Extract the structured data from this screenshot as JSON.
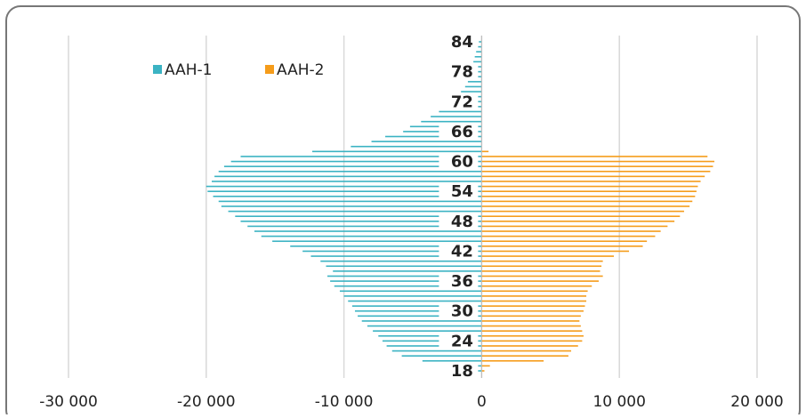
{
  "chart_data": {
    "type": "pyramid",
    "categories": [
      "18",
      null,
      null,
      null,
      null,
      null,
      "24",
      null,
      null,
      null,
      null,
      null,
      "30",
      null,
      null,
      null,
      null,
      null,
      "36",
      null,
      null,
      null,
      null,
      null,
      "42",
      null,
      null,
      null,
      null,
      null,
      "48",
      null,
      null,
      null,
      null,
      null,
      "54",
      null,
      null,
      null,
      null,
      null,
      "60",
      null,
      null,
      null,
      null,
      null,
      "66",
      null,
      null,
      null,
      null,
      null,
      "72",
      null,
      null,
      null,
      null,
      null,
      "78",
      null,
      null,
      null,
      null,
      null,
      "84"
    ],
    "series": [
      {
        "name": "AAH-1",
        "color": "#3bb3c3",
        "values": [
          -500,
          -2500,
          -4300,
          -5800,
          -6500,
          -6900,
          -7200,
          -7500,
          -7900,
          -8300,
          -8700,
          -9000,
          -9200,
          -9400,
          -9700,
          -10000,
          -10300,
          -10700,
          -11000,
          -11200,
          -10800,
          -11300,
          -11700,
          -12400,
          -13000,
          -13900,
          -15200,
          -16000,
          -16500,
          -17000,
          -17500,
          -17900,
          -18400,
          -18900,
          -19100,
          -19500,
          -19900,
          -20000,
          -19600,
          -19400,
          -19100,
          -18700,
          -18200,
          -17500,
          -12300,
          -9500,
          -8000,
          -7000,
          -5700,
          -5200,
          -4400,
          -3700,
          -3100,
          -2600,
          -2100,
          -1800,
          -1500,
          -1200,
          -1000,
          -900,
          -800,
          -700,
          -600,
          -500,
          -400,
          -300,
          -200
        ]
      },
      {
        "name": "AAH-2",
        "color": "#f59c1a",
        "values": [
          200,
          600,
          4500,
          6300,
          6500,
          7000,
          7300,
          7400,
          7300,
          7200,
          7100,
          7200,
          7400,
          7500,
          7600,
          7600,
          7700,
          8000,
          8500,
          8800,
          8600,
          8700,
          8800,
          9600,
          10700,
          11700,
          12000,
          12600,
          13000,
          13500,
          14000,
          14400,
          14700,
          15100,
          15300,
          15500,
          15600,
          15700,
          15900,
          16200,
          16600,
          16800,
          16900,
          16400,
          500,
          0,
          0,
          0,
          0,
          0,
          0,
          0,
          0,
          0,
          0,
          0,
          0,
          0,
          0,
          0,
          0,
          0,
          0,
          0,
          0,
          0,
          0
        ]
      }
    ],
    "xlim": [
      -30000,
      20000
    ],
    "xticks": [
      {
        "value": -30000,
        "label": "-30 000"
      },
      {
        "value": -20000,
        "label": "-20 000"
      },
      {
        "value": -10000,
        "label": "-10 000"
      },
      0,
      {
        "value": 10000,
        "label": "10 000"
      },
      {
        "value": 20000,
        "label": "20 000"
      }
    ],
    "grid": true,
    "legend": "top-left"
  }
}
